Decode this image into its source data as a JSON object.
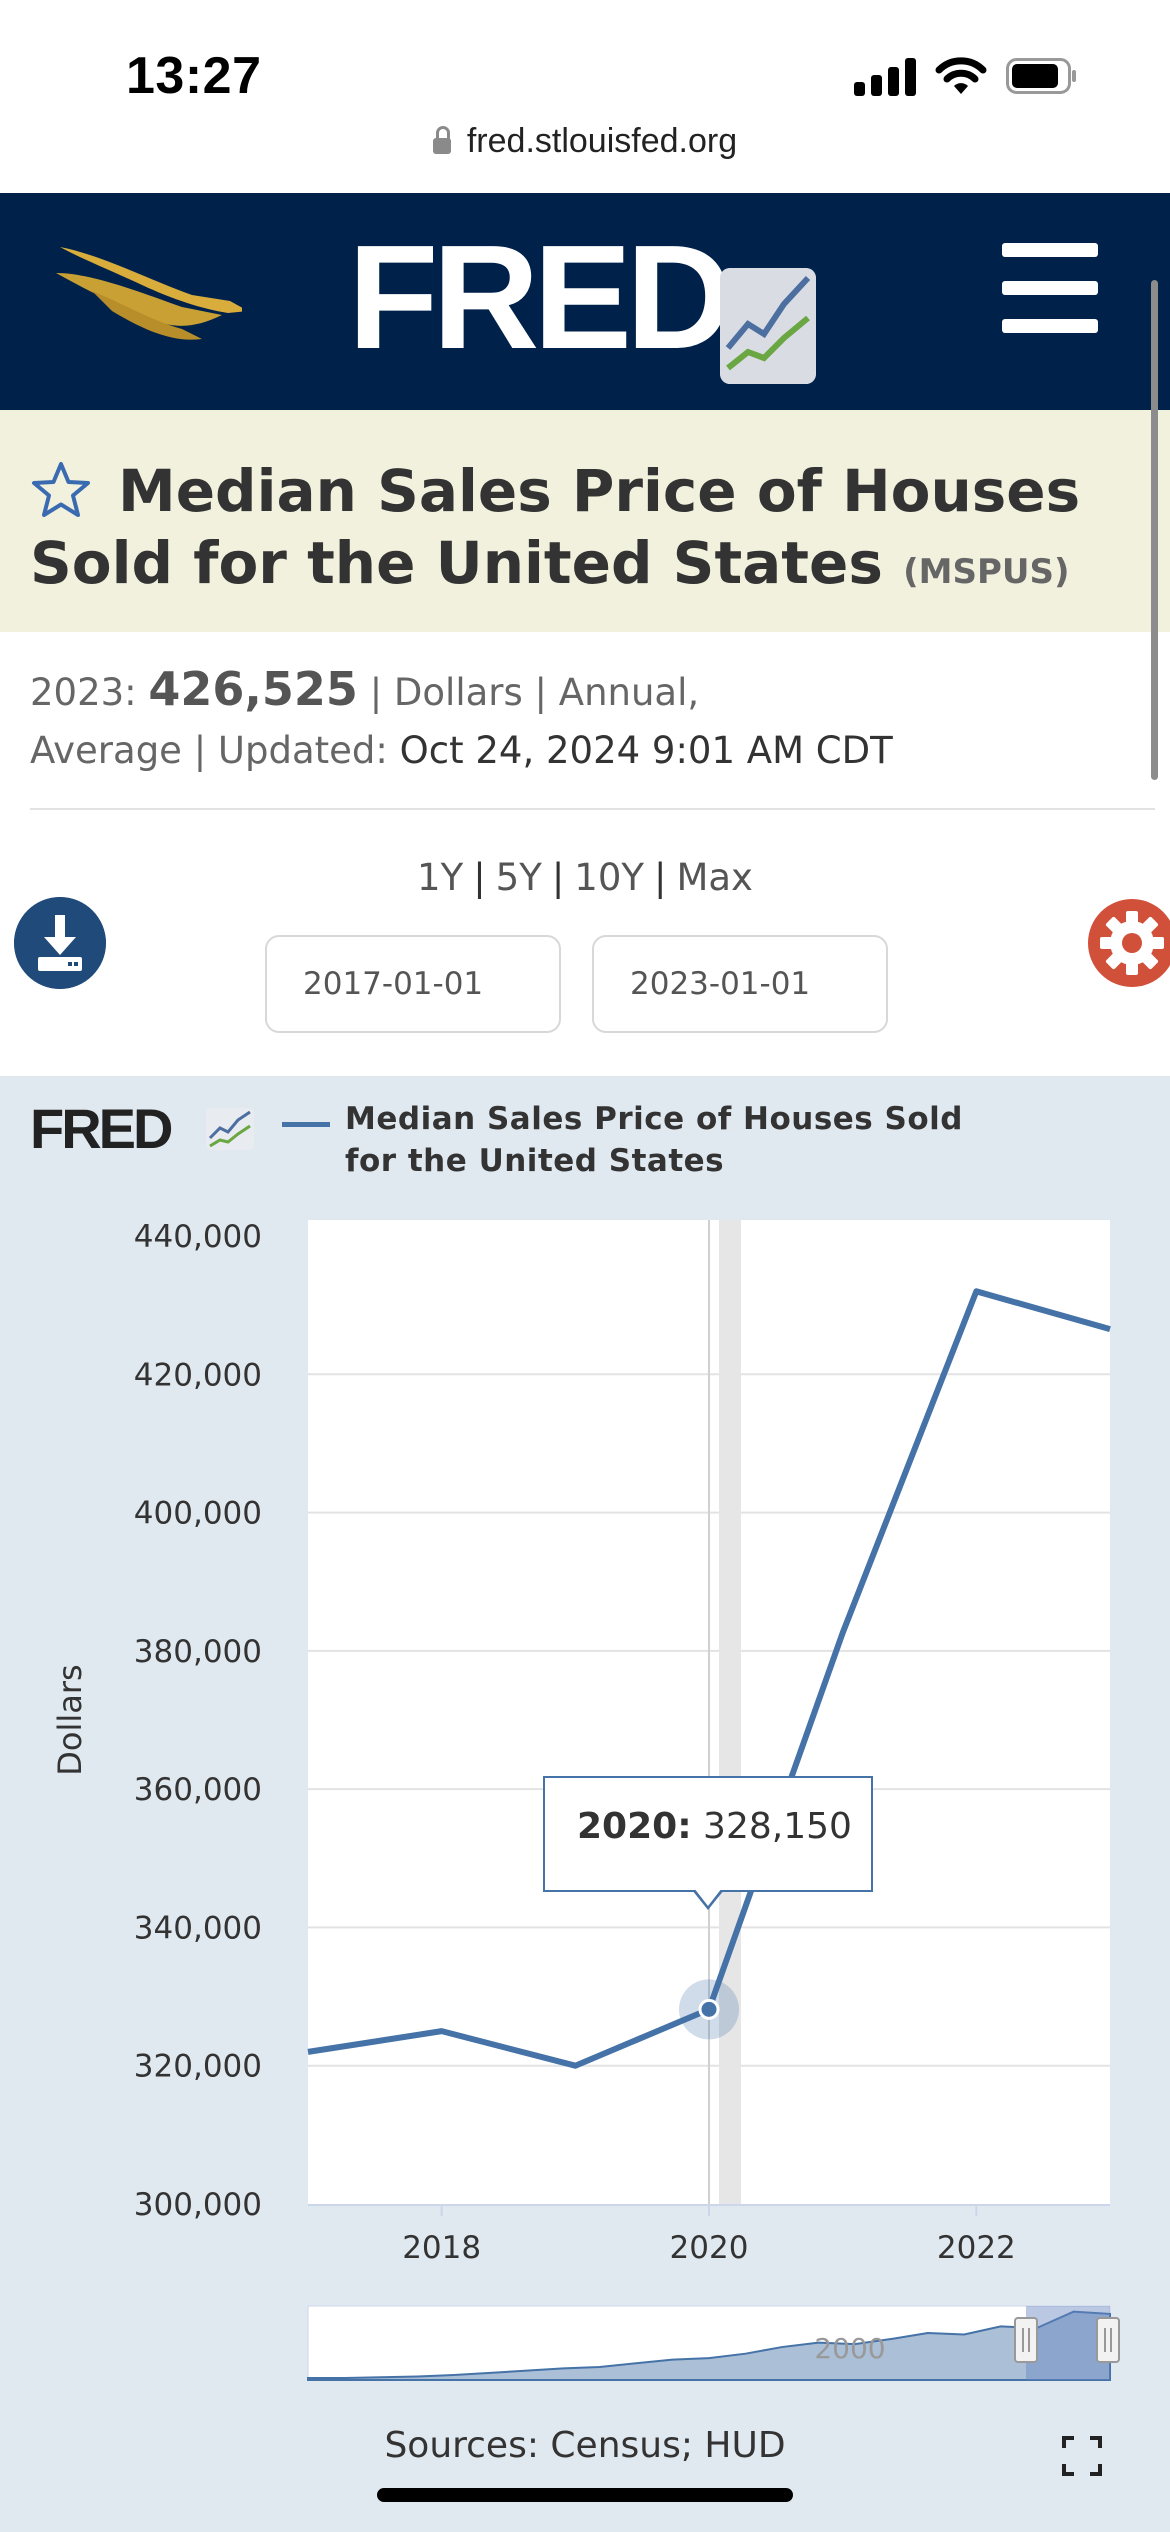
{
  "status_bar": {
    "time": "13:27"
  },
  "browser": {
    "url": "fred.stlouisfed.org"
  },
  "header": {
    "logo_text": "FRED",
    "logo_trademark": "®"
  },
  "series": {
    "title": "Median Sales Price of Houses Sold for the United States",
    "id": "(MSPUS)",
    "latest_label": "2023:",
    "latest_value": "426,525",
    "meta_line1_rest": "| Dollars | Annual,",
    "meta_line2_prefix": "Average | Updated:",
    "updated": "Oct 24, 2024 9:01 AM CDT"
  },
  "range": {
    "options": [
      "1Y",
      "5Y",
      "10Y",
      "Max"
    ],
    "start_date": "2017-01-01",
    "end_date": "2023-01-01"
  },
  "chart_logo_text": "FRED",
  "tooltip": {
    "label": "2020:",
    "value": "328,150"
  },
  "navigator_label": "2000",
  "sources": "Sources: Census; HUD",
  "colors": {
    "navy": "#00214a",
    "series": "#4572a7",
    "gold": "#c8a033",
    "settings": "#d1503a"
  },
  "chart_data": {
    "type": "line",
    "title": "",
    "xlabel": "",
    "ylabel": "Dollars",
    "legend": "Median Sales Price of Houses Sold for the United States",
    "legend_placement": "top",
    "grid": true,
    "xlim": [
      2017,
      2023
    ],
    "ylim": [
      300000,
      440000
    ],
    "x_ticks": [
      "2018",
      "2020",
      "2022"
    ],
    "y_ticks": [
      "300,000",
      "320,000",
      "340,000",
      "360,000",
      "380,000",
      "400,000",
      "420,000",
      "440,000"
    ],
    "series": [
      {
        "name": "Median Sales Price of Houses Sold for the United States",
        "x": [
          2017,
          2018,
          2019,
          2020,
          2021,
          2022,
          2023
        ],
        "values": [
          322000,
          325000,
          320000,
          328150,
          382600,
          432000,
          426525
        ]
      }
    ],
    "highlight": {
      "x": 2020,
      "y": 328150
    }
  }
}
